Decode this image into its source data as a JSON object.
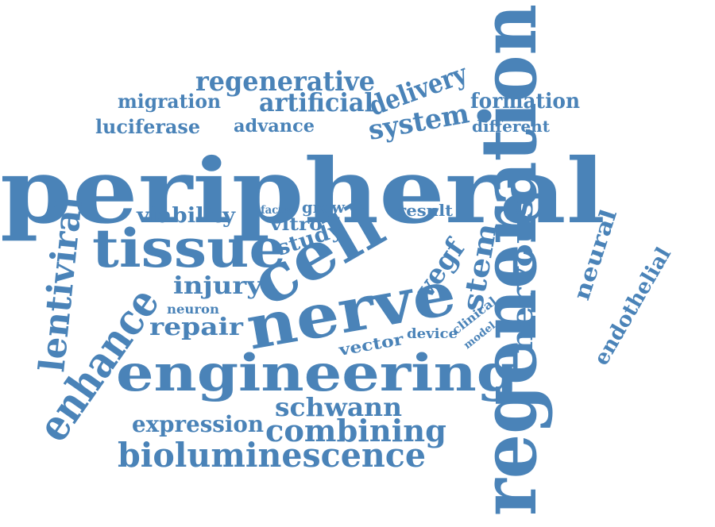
{
  "word_cloud": {
    "color": "#4a83b8",
    "background": "#ffffff",
    "words": [
      {
        "text": "peripheral",
        "key": "peripheral"
      },
      {
        "text": "regeneration",
        "key": "regeneration"
      },
      {
        "text": "nerve",
        "key": "nerve"
      },
      {
        "text": "cell",
        "key": "cell"
      },
      {
        "text": "engineering",
        "key": "engineering"
      },
      {
        "text": "tissue",
        "key": "tissue"
      },
      {
        "text": "enhance",
        "key": "enhance"
      },
      {
        "text": "lentiviral",
        "key": "lentiviral"
      },
      {
        "text": "bioluminescence",
        "key": "bioluminescence"
      },
      {
        "text": "combining",
        "key": "combining"
      },
      {
        "text": "schwann",
        "key": "schwann"
      },
      {
        "text": "expression",
        "key": "expression"
      },
      {
        "text": "regenerative",
        "key": "regenerative"
      },
      {
        "text": "artificial",
        "key": "artificial"
      },
      {
        "text": "delivery",
        "key": "delivery"
      },
      {
        "text": "system",
        "key": "system"
      },
      {
        "text": "migration",
        "key": "migration"
      },
      {
        "text": "formation",
        "key": "formation"
      },
      {
        "text": "luciferase",
        "key": "luciferase"
      },
      {
        "text": "advance",
        "key": "advance"
      },
      {
        "text": "different",
        "key": "different"
      },
      {
        "text": "viability",
        "key": "viability"
      },
      {
        "text": "factor",
        "key": "factor"
      },
      {
        "text": "grow",
        "key": "grow"
      },
      {
        "text": "vitro",
        "key": "vitro"
      },
      {
        "text": "result",
        "key": "result"
      },
      {
        "text": "study",
        "key": "study"
      },
      {
        "text": "vegf",
        "key": "vegf"
      },
      {
        "text": "stem",
        "key": "stem"
      },
      {
        "text": "nervous",
        "key": "nervous"
      },
      {
        "text": "neural",
        "key": "neural"
      },
      {
        "text": "endothelial",
        "key": "endothelial"
      },
      {
        "text": "injury",
        "key": "injury"
      },
      {
        "text": "neuron",
        "key": "neuron"
      },
      {
        "text": "repair",
        "key": "repair"
      },
      {
        "text": "vector",
        "key": "vector"
      },
      {
        "text": "device",
        "key": "device"
      },
      {
        "text": "clinical",
        "key": "clinical"
      },
      {
        "text": "model",
        "key": "model"
      }
    ]
  }
}
